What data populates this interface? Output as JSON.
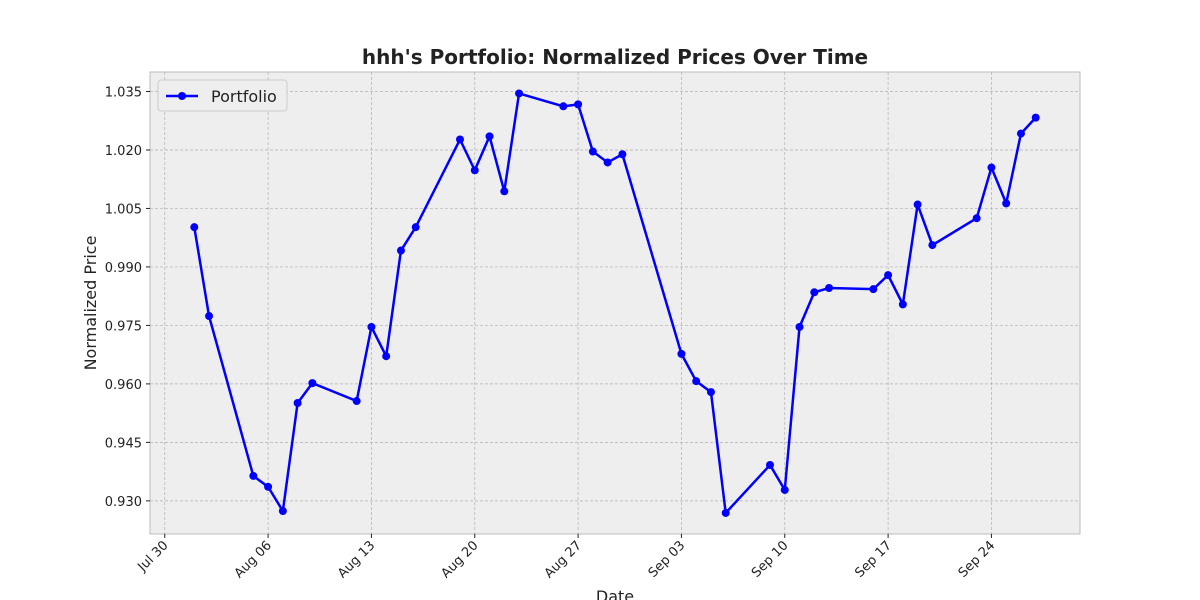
{
  "chart_data": {
    "type": "line",
    "title": "hhh's Portfolio: Normalized Prices Over Time",
    "x_label": "Date",
    "y_label": "Normalized Price",
    "x": [
      "Aug 01",
      "Aug 02",
      "Aug 05",
      "Aug 06",
      "Aug 07",
      "Aug 08",
      "Aug 09",
      "Aug 12",
      "Aug 13",
      "Aug 14",
      "Aug 15",
      "Aug 16",
      "Aug 19",
      "Aug 20",
      "Aug 21",
      "Aug 22",
      "Aug 23",
      "Aug 26",
      "Aug 27",
      "Aug 28",
      "Aug 29",
      "Aug 30",
      "Sep 03",
      "Sep 04",
      "Sep 05",
      "Sep 06",
      "Sep 09",
      "Sep 10",
      "Sep 11",
      "Sep 12",
      "Sep 13",
      "Sep 16",
      "Sep 17",
      "Sep 18",
      "Sep 19",
      "Sep 20",
      "Sep 23",
      "Sep 24",
      "Sep 25",
      "Sep 26",
      "Sep 27"
    ],
    "series": [
      {
        "name": "Portfolio",
        "color": "#0000ff",
        "values": [
          1.0002,
          0.9774,
          0.9364,
          0.9336,
          0.9274,
          0.9551,
          0.9602,
          0.9556,
          0.9746,
          0.9671,
          0.9942,
          1.0002,
          1.0227,
          1.0148,
          1.0235,
          1.0094,
          1.0345,
          1.0312,
          1.0317,
          1.0196,
          1.0168,
          1.0189,
          0.9677,
          0.9607,
          0.9579,
          0.9269,
          0.9392,
          0.9328,
          0.9746,
          0.9835,
          0.9846,
          0.9843,
          0.9879,
          0.9804,
          1.006,
          0.9956,
          1.0025,
          1.0155,
          1.0063,
          1.0242,
          1.0283
        ]
      }
    ],
    "xlim": [
      "Jul 29",
      "Sep 30"
    ],
    "xticks": [
      "Jul 30",
      "Aug 06",
      "Aug 13",
      "Aug 20",
      "Aug 27",
      "Sep 03",
      "Sep 10",
      "Sep 17",
      "Sep 24"
    ],
    "ylim": [
      0.9215,
      1.04
    ],
    "yticks": [
      {
        "value": 0.93,
        "label": "0.930"
      },
      0.945,
      {
        "value": 0.96,
        "label": "0.960"
      },
      0.975,
      {
        "value": 0.99,
        "label": "0.990"
      },
      1.005,
      {
        "value": 1.02,
        "label": "1.020"
      },
      1.035
    ],
    "grid": true,
    "legend": "upper left"
  }
}
